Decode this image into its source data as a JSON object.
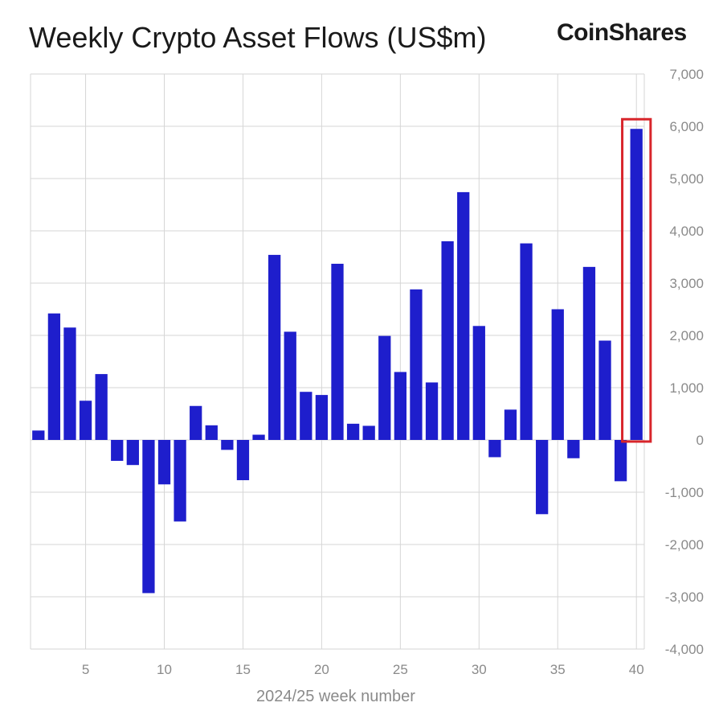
{
  "title": "Weekly Crypto Asset Flows (US$m)",
  "brand": "CoinShares",
  "colors": {
    "bar": "#1e1ecc",
    "grid": "#d6d6d6",
    "highlight": "#d8252b",
    "text": "#1a1a1a",
    "tick": "#8a8a8a"
  },
  "chart_data": {
    "type": "bar",
    "title": "Weekly Crypto Asset Flows (US$m)",
    "xlabel": "2024/25 week number",
    "ylabel": "",
    "x": [
      2,
      3,
      4,
      5,
      6,
      7,
      8,
      9,
      10,
      11,
      12,
      13,
      14,
      15,
      16,
      17,
      18,
      19,
      20,
      21,
      22,
      23,
      24,
      25,
      26,
      27,
      28,
      29,
      30,
      31,
      32,
      33,
      34,
      35,
      36,
      37,
      38,
      39,
      40
    ],
    "values": [
      180,
      2420,
      2150,
      750,
      1260,
      -400,
      -480,
      -2930,
      -850,
      -1560,
      650,
      280,
      -190,
      -770,
      100,
      3540,
      2070,
      920,
      860,
      3370,
      310,
      270,
      1990,
      1300,
      2880,
      1100,
      3800,
      4740,
      2180,
      -330,
      580,
      3760,
      -1420,
      2500,
      -350,
      3310,
      1900,
      -790,
      5950
    ],
    "xlim": [
      1.5,
      40.5
    ],
    "ylim": [
      -4000,
      7000
    ],
    "x_ticks": [
      5,
      10,
      15,
      20,
      25,
      30,
      35,
      40
    ],
    "y_ticks": [
      -4000,
      -3000,
      -2000,
      -1000,
      0,
      1000,
      2000,
      3000,
      4000,
      5000,
      6000,
      7000
    ],
    "y_tick_labels": [
      "-4,000",
      "-3,000",
      "-2,000",
      "-1,000",
      "0",
      "1,000",
      "2,000",
      "3,000",
      "4,000",
      "5,000",
      "6,000",
      "7,000"
    ],
    "grid": true,
    "y_axis_side": "right",
    "highlight_week": 40
  }
}
